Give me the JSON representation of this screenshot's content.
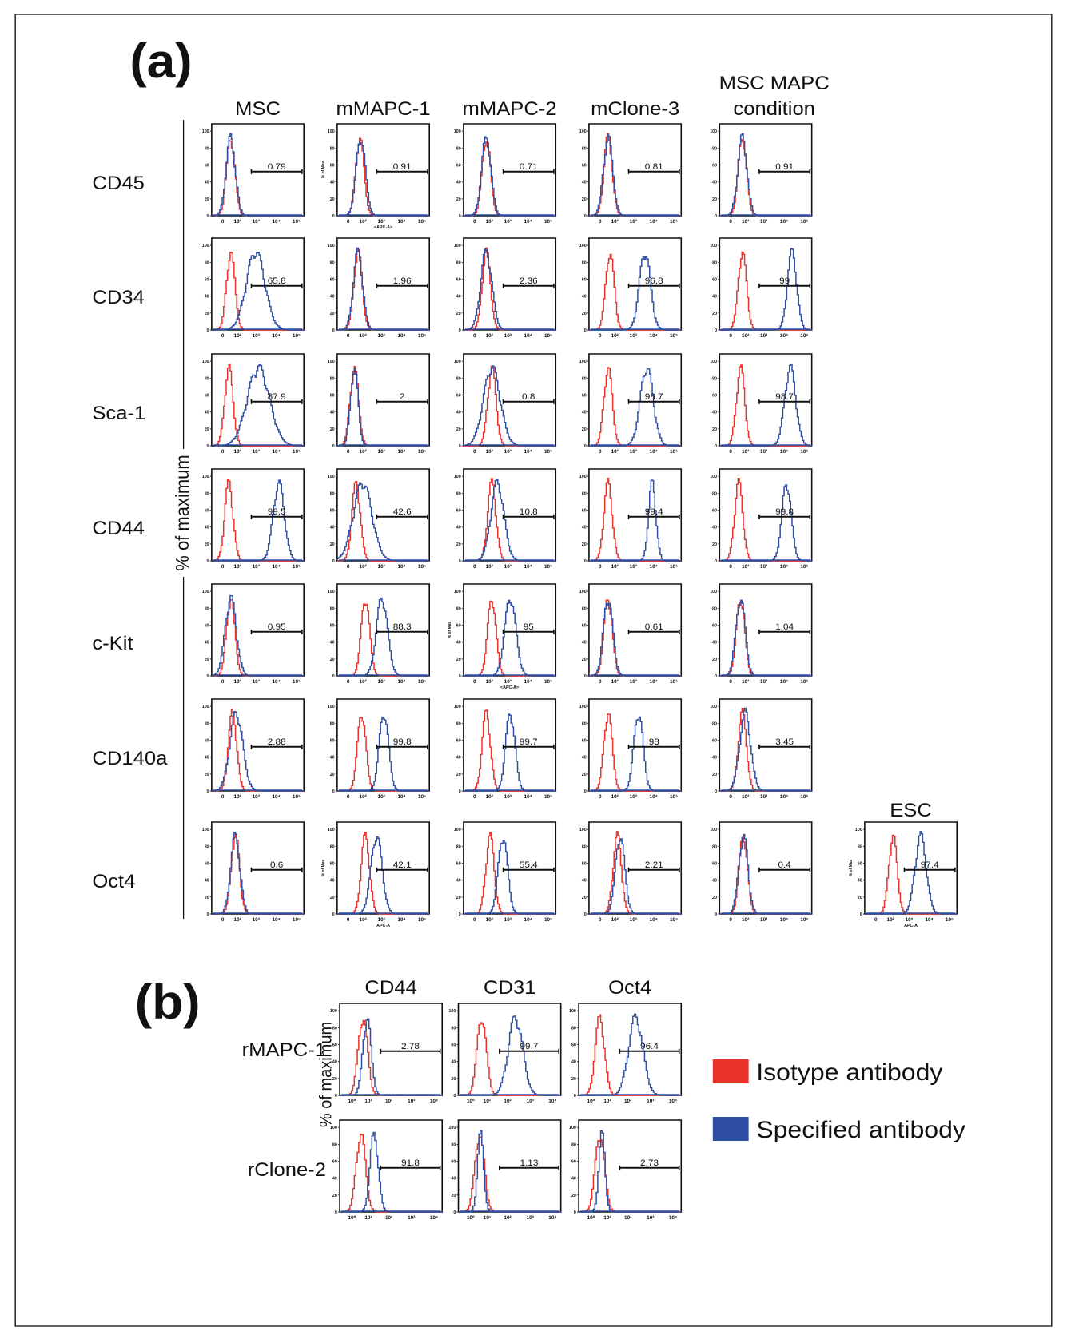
{
  "figure": {
    "panel_a": {
      "label": "(a)",
      "columns": [
        "MSC",
        "mMAPC-1",
        "mMAPC-2",
        "mClone-3",
        [
          "MSC MAPC",
          "condition"
        ],
        "ESC"
      ],
      "y_axis_label": "% of maximum",
      "yticks": [
        0,
        20,
        40,
        60,
        80,
        100
      ],
      "xtick_labels": [
        "0",
        "10²",
        "10³",
        "10⁴",
        "10⁵"
      ],
      "rows": [
        {
          "label": "CD45",
          "values": [
            0.79,
            0.91,
            0.71,
            0.81,
            0.91
          ],
          "axis_titles": [
            null,
            {
              "y": "% of Max",
              "x": "<APC-A>"
            },
            null,
            null,
            null
          ]
        },
        {
          "label": "CD34",
          "values": [
            65.8,
            1.96,
            2.36,
            96.8,
            99
          ]
        },
        {
          "label": "Sca-1",
          "values": [
            87.9,
            2,
            0.8,
            98.7,
            98.7
          ]
        },
        {
          "label": "CD44",
          "values": [
            99.5,
            42.6,
            10.8,
            99.4,
            99.8
          ]
        },
        {
          "label": "c-Kit",
          "values": [
            0.95,
            88.3,
            95,
            0.61,
            1.04
          ],
          "axis_titles": [
            null,
            null,
            {
              "y": "% of Max",
              "x": "<APC-A>"
            },
            null,
            null
          ]
        },
        {
          "label": "CD140a",
          "values": [
            2.88,
            99.8,
            99.7,
            98,
            3.45
          ]
        },
        {
          "label": "Oct4",
          "values": [
            0.6,
            42.1,
            55.4,
            2.21,
            0.4,
            97.4
          ],
          "axis_titles": [
            null,
            {
              "y": "% of Max",
              "x": "APC-A"
            },
            null,
            null,
            null,
            {
              "y": "% of Max",
              "x": "APC-A"
            }
          ]
        }
      ]
    },
    "panel_b": {
      "label": "(b)",
      "columns": [
        "CD44",
        "CD31",
        "Oct4"
      ],
      "y_axis_label": "% of maximum",
      "yticks": [
        0,
        20,
        40,
        60,
        80,
        100
      ],
      "xtick_labels": [
        "10⁰",
        "10¹",
        "10²",
        "10³",
        "10⁴"
      ],
      "rows": [
        {
          "label": "rMAPC-1",
          "values": [
            2.78,
            99.7,
            96.4
          ]
        },
        {
          "label": "rClone-2",
          "values": [
            91.8,
            1.13,
            2.73
          ]
        }
      ]
    },
    "legend": [
      {
        "name": "Isotype antibody",
        "color": "#e8322b"
      },
      {
        "name": "Specified antibody",
        "color": "#2e4ea1"
      }
    ]
  }
}
